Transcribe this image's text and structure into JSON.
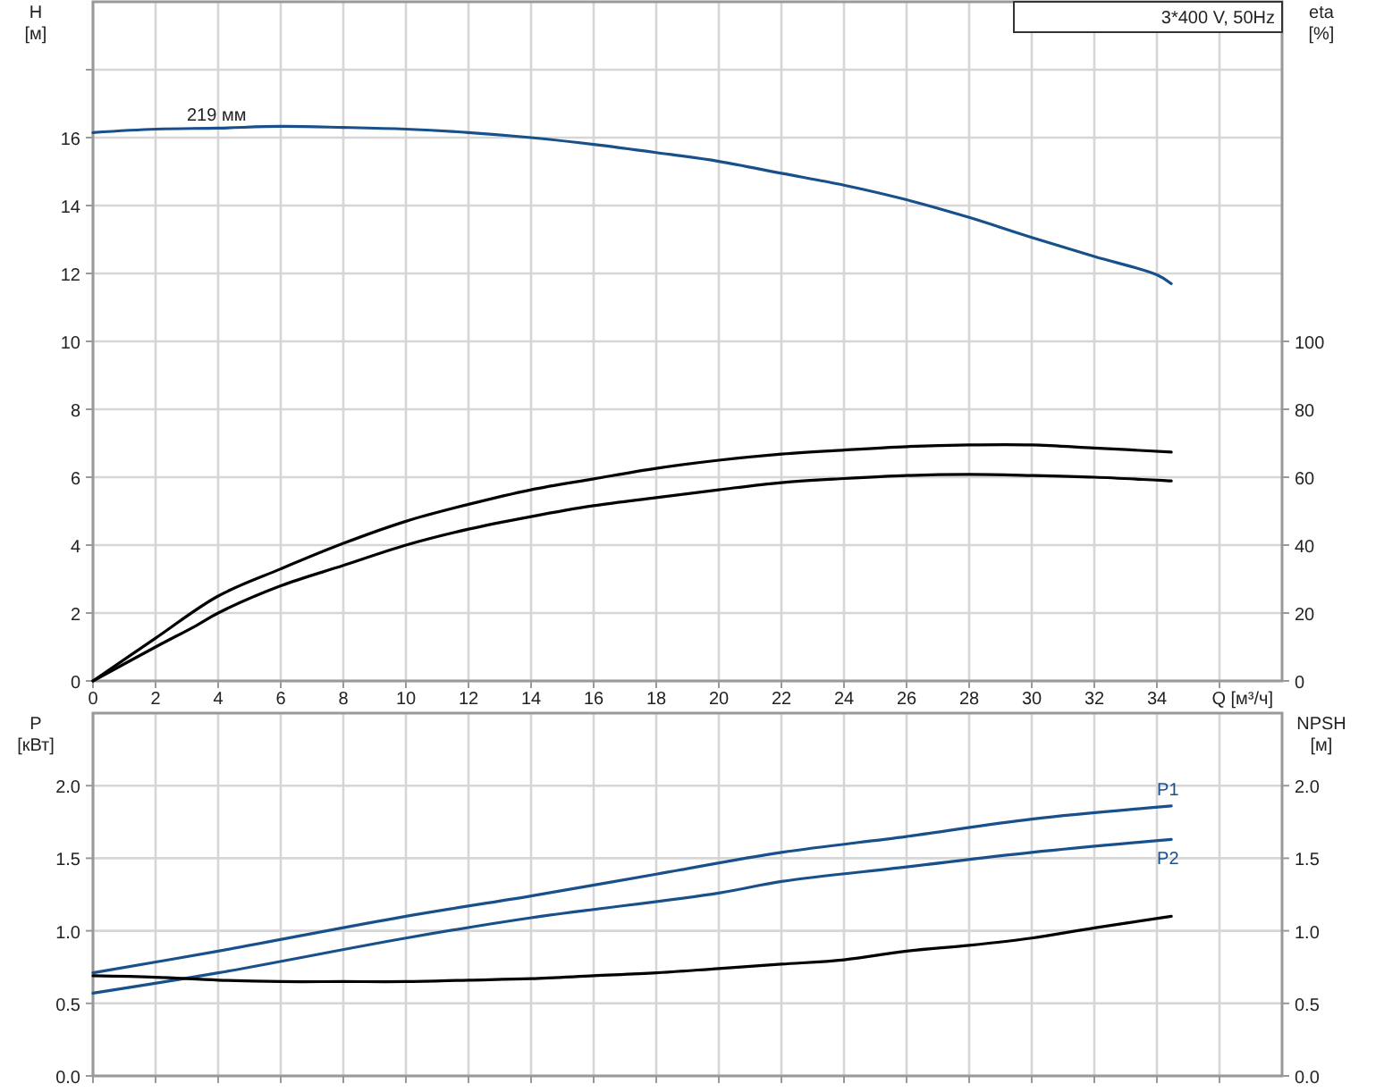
{
  "chart_data": [
    {
      "type": "line",
      "title": "3*400 V, 50Hz",
      "xlabel": "Q [м³/ч]",
      "ylabel": "H [м]",
      "y2label": "eta [%]",
      "xlim": [
        0,
        38
      ],
      "xticks": [
        0,
        2,
        4,
        6,
        8,
        10,
        12,
        14,
        16,
        18,
        20,
        22,
        24,
        26,
        28,
        30,
        32,
        34,
        {
          "value": 36,
          "label": null
        }
      ],
      "ylim": [
        0,
        20
      ],
      "yticks": [
        0,
        2,
        4,
        6,
        8,
        10,
        12,
        14,
        16,
        {
          "value": 18,
          "label": null
        }
      ],
      "y2lim": [
        0,
        200
      ],
      "y2ticks": [
        0,
        20,
        40,
        60,
        80,
        100
      ],
      "grid": true,
      "annotations": [
        {
          "text": "219 мм",
          "x": 3,
          "y": 16.3
        }
      ],
      "series": [
        {
          "color": "#17508a",
          "x": [
            0,
            2,
            4,
            6,
            8,
            10,
            12,
            14,
            16,
            18,
            20,
            22,
            24,
            26,
            28,
            30,
            32,
            34,
            34.46
          ],
          "values": [
            16.15,
            16.25,
            16.28,
            16.33,
            16.3,
            16.25,
            16.15,
            16.0,
            15.8,
            15.56,
            15.3,
            14.95,
            14.6,
            14.17,
            13.65,
            13.06,
            12.5,
            11.96,
            11.7
          ]
        },
        {
          "color": "#000000",
          "axis": "y2",
          "x": [
            0,
            2,
            4,
            6,
            8,
            10,
            12,
            14,
            16,
            18,
            20,
            22,
            24,
            26,
            28,
            30,
            32,
            34.46
          ],
          "values": [
            0,
            12.6,
            25,
            33,
            40.5,
            47,
            52,
            56.3,
            59.5,
            62.6,
            65,
            66.8,
            68,
            69,
            69.5,
            69.5,
            68.6,
            67.4
          ]
        },
        {
          "color": "#000000",
          "axis": "y2",
          "x": [
            0,
            2,
            3.3,
            4,
            6,
            8,
            10,
            12,
            14,
            16,
            18,
            20,
            22,
            24,
            26,
            28,
            30,
            32,
            34.46
          ],
          "values": [
            0,
            10,
            16.3,
            20,
            28,
            34,
            40,
            44.7,
            48.4,
            51.6,
            54,
            56.3,
            58.4,
            59.6,
            60.5,
            60.8,
            60.5,
            60,
            58.9
          ]
        }
      ]
    },
    {
      "type": "line",
      "ylabel": "P [кВт]",
      "y2label": "NPSH [м]",
      "tick_labels": "y",
      "xlim": [
        0,
        38
      ],
      "xticks": [
        0,
        2,
        4,
        6,
        8,
        10,
        12,
        14,
        16,
        18,
        20,
        22,
        24,
        26,
        28,
        30,
        32,
        34,
        36
      ],
      "ylim": [
        0,
        2.5
      ],
      "yticks": [
        {
          "value": 0,
          "label": "0.0"
        },
        {
          "value": 0.5,
          "label": "0.5"
        },
        {
          "value": 1,
          "label": "1.0"
        },
        {
          "value": 1.5,
          "label": "1.5"
        },
        {
          "value": 2,
          "label": "2.0"
        }
      ],
      "y2lim": [
        0,
        2.5
      ],
      "y2ticks": [
        {
          "value": 0,
          "label": "0.0"
        },
        {
          "value": 0.5,
          "label": "0.5"
        },
        {
          "value": 1,
          "label": "1.0"
        },
        {
          "value": 1.5,
          "label": "1.5"
        },
        {
          "value": 2,
          "label": "2.0"
        }
      ],
      "grid": true,
      "series": [
        {
          "name": "P1",
          "color": "#17508a",
          "x": [
            0,
            4,
            10,
            14,
            18,
            22,
            26,
            30,
            34.46
          ],
          "values": [
            0.71,
            0.86,
            1.1,
            1.24,
            1.39,
            1.54,
            1.65,
            1.77,
            1.86
          ]
        },
        {
          "name": "P2",
          "color": "#17508a",
          "x": [
            0,
            4,
            10,
            14,
            20,
            22,
            26,
            30,
            34.46
          ],
          "values": [
            0.57,
            0.71,
            0.95,
            1.09,
            1.26,
            1.34,
            1.44,
            1.54,
            1.63
          ]
        },
        {
          "color": "#000000",
          "axis": "y2",
          "x": [
            0,
            2,
            4,
            6,
            8,
            10,
            12,
            14,
            16,
            18,
            20,
            22,
            24,
            26,
            28,
            30,
            32,
            34.46
          ],
          "values": [
            0.69,
            0.68,
            0.66,
            0.65,
            0.65,
            0.65,
            0.66,
            0.67,
            0.69,
            0.71,
            0.74,
            0.77,
            0.8,
            0.86,
            0.9,
            0.95,
            1.02,
            1.1
          ]
        }
      ]
    }
  ]
}
